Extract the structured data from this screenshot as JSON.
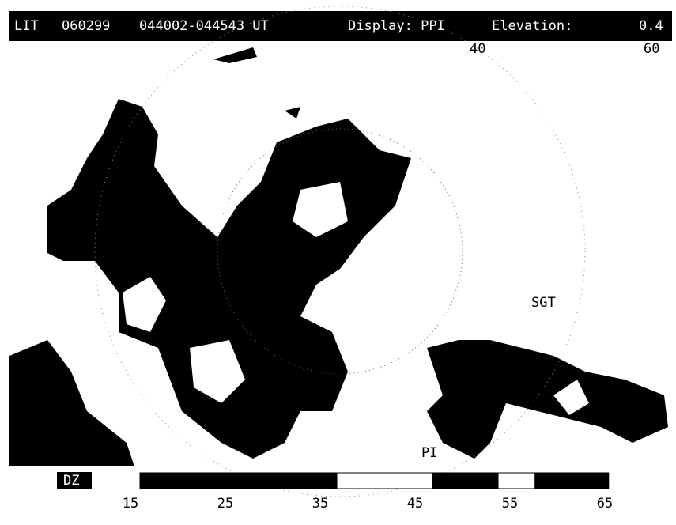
{
  "header": {
    "station": "LIT",
    "date": "060299",
    "time": "044002-044543 UT",
    "display": "Display: PPI",
    "elevation_label": "Elevation:",
    "elevation": "0.4"
  },
  "range_labels": [
    "40",
    "60"
  ],
  "site_labels": [
    "SGT",
    "PI"
  ],
  "legend": {
    "label": "DZ",
    "ticks": [
      15,
      25,
      35,
      45,
      55,
      65
    ],
    "segments": [
      {
        "from": 16,
        "to": 36.8,
        "color": "#000000"
      },
      {
        "from": 36.8,
        "to": 46.8,
        "color": "#ffffff"
      },
      {
        "from": 46.8,
        "to": 53.8,
        "color": "#000000"
      },
      {
        "from": 53.8,
        "to": 57.6,
        "color": "#ffffff"
      },
      {
        "from": 57.6,
        "to": 65.4,
        "color": "#000000"
      }
    ]
  }
}
